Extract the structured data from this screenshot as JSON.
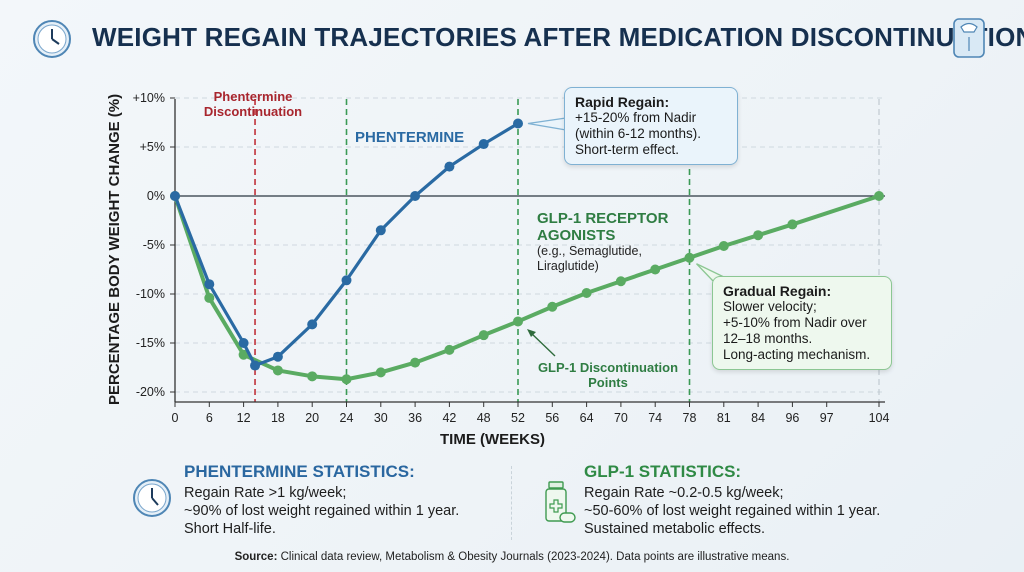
{
  "header": {
    "title": "WEIGHT REGAIN TRAJECTORIES AFTER MEDICATION DISCONTINUATION.",
    "left_icon": "clock-icon",
    "right_icon": "bathroom-scale-icon"
  },
  "chart_data": {
    "type": "line",
    "title": "WEIGHT REGAIN TRAJECTORIES AFTER MEDICATION DISCONTINUATION.",
    "xlabel": "TIME (WEEKS)",
    "ylabel": "PERCENTAGE BODY WEIGHT CHANGE (%)",
    "x_ticks": [
      0,
      6,
      12,
      18,
      20,
      24,
      30,
      36,
      42,
      48,
      52,
      56,
      64,
      70,
      74,
      78,
      81,
      84,
      96,
      97,
      104
    ],
    "y_ticks": [
      "+10%",
      "+5%",
      "0%",
      "-5%",
      "-10%",
      "-15%",
      "-20%"
    ],
    "y_tick_values": [
      10,
      5,
      0,
      -5,
      -10,
      -15,
      -20
    ],
    "ylim": [
      -20,
      10
    ],
    "grid": true,
    "series": [
      {
        "name": "PHENTERMINE",
        "color": "#2a6aa3",
        "x": [
          0,
          6,
          12,
          14,
          18,
          20,
          24,
          30,
          36,
          42,
          48,
          52
        ],
        "y": [
          0,
          -9,
          -15,
          -17.3,
          -16.4,
          -13.1,
          -8.6,
          -3.5,
          0,
          3,
          5.3,
          7.4
        ]
      },
      {
        "name": "GLP-1 RECEPTOR AGONISTS",
        "color": "#5aab62",
        "x": [
          0,
          6,
          12,
          18,
          20,
          24,
          30,
          36,
          42,
          48,
          52,
          56,
          64,
          70,
          74,
          78,
          81,
          84,
          96,
          104
        ],
        "y": [
          0,
          -10.4,
          -16.2,
          -17.8,
          -18.4,
          -18.7,
          -18,
          -17,
          -15.7,
          -14.2,
          -12.8,
          -11.3,
          -9.9,
          -8.7,
          -7.5,
          -6.3,
          -5.1,
          -4,
          -2.9,
          0
        ]
      }
    ],
    "vertical_markers": [
      {
        "x": 14,
        "color": "#c0323a",
        "label": "Phentermine Discontinuation"
      },
      {
        "x": 24,
        "color": "#3a9a55"
      },
      {
        "x": 52,
        "color": "#3a9a55"
      },
      {
        "x": 78,
        "color": "#3a9a55"
      },
      {
        "x": 104,
        "color": "#b8c2c9"
      }
    ],
    "annotations": {
      "phentermine_label": "PHENTERMINE",
      "glp_label_1": "GLP-1 RECEPTOR",
      "glp_label_2": "AGONISTS",
      "glp_sub_1": "(e.g., Semaglutide,",
      "glp_sub_2": "Liraglutide)",
      "phen_disc_1": "Phentermine",
      "phen_disc_2": "Discontinuation",
      "glp_disc_1": "GLP-1 Discontinuation",
      "glp_disc_2": "Points",
      "rapid": {
        "title": "Rapid Regain:",
        "lines": [
          "+15-20% from Nadir",
          "(within 6-12 months).",
          "Short-term effect."
        ]
      },
      "gradual": {
        "title": "Gradual Regain:",
        "lines": [
          "Slower velocity;",
          "+5-10% from Nadir over",
          "12–18 months.",
          "Long-acting mechanism."
        ]
      }
    }
  },
  "stats": {
    "phentermine": {
      "title": "PHENTERMINE STATISTICS:",
      "icon": "clock-icon",
      "lines": [
        "Regain Rate >1 kg/week;",
        "~90% of lost weight regained within 1 year.",
        "Short Half-life."
      ]
    },
    "glp1": {
      "title": "GLP-1 STATISTICS:",
      "icon": "medicine-bottle-icon",
      "lines": [
        "Regain Rate ~0.2-0.5 kg/week;",
        "~50-60% of lost weight regained within 1 year.",
        "Sustained metabolic effects."
      ]
    }
  },
  "footer": {
    "source_label": "Source:",
    "source_text": " Clinical data review, Metabolism & Obesity Journals (2023-2024). Data points are illustrative means."
  }
}
